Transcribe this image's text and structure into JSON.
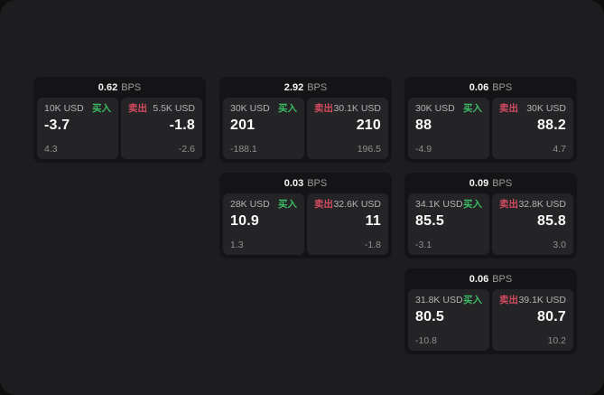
{
  "window": {
    "background": "#0e0e0e",
    "panel_background": "#1d1d1f"
  },
  "labels": {
    "unit": "BPS",
    "buy": "买入",
    "sell": "卖出"
  },
  "colors": {
    "buy_accent": "#3dba64",
    "sell_accent": "#d24b5f",
    "card_background": "#141416",
    "tile_background": "#242427",
    "primary_text": "#fafafa",
    "label_text": "#b3b3b3",
    "muted_text": "#8f8f8f"
  },
  "cards": [
    {
      "bps": "0.62",
      "buy": {
        "amount": "10K USD",
        "price": "-3.7",
        "delta": "4.3"
      },
      "sell": {
        "amount": "5.5K USD",
        "price": "-1.8",
        "delta": "-2.6"
      }
    },
    {
      "bps": "2.92",
      "buy": {
        "amount": "30K USD",
        "price": "201",
        "delta": "-188.1"
      },
      "sell": {
        "amount": "30.1K USD",
        "price": "210",
        "delta": "196.5"
      }
    },
    {
      "bps": "0.06",
      "buy": {
        "amount": "30K USD",
        "price": "88",
        "delta": "-4.9"
      },
      "sell": {
        "amount": "30K USD",
        "price": "88.2",
        "delta": "4.7"
      }
    },
    {
      "bps": "0.03",
      "buy": {
        "amount": "28K USD",
        "price": "10.9",
        "delta": "1.3"
      },
      "sell": {
        "amount": "32.6K USD",
        "price": "11",
        "delta": "-1.8"
      }
    },
    {
      "bps": "0.09",
      "buy": {
        "amount": "34.1K USD",
        "price": "85.5",
        "delta": "-3.1"
      },
      "sell": {
        "amount": "32.8K USD",
        "price": "85.8",
        "delta": "3.0"
      }
    },
    {
      "bps": "0.06",
      "buy": {
        "amount": "31.8K USD",
        "price": "80.5",
        "delta": "-10.8"
      },
      "sell": {
        "amount": "39.1K USD",
        "price": "80.7",
        "delta": "10.2"
      }
    }
  ]
}
